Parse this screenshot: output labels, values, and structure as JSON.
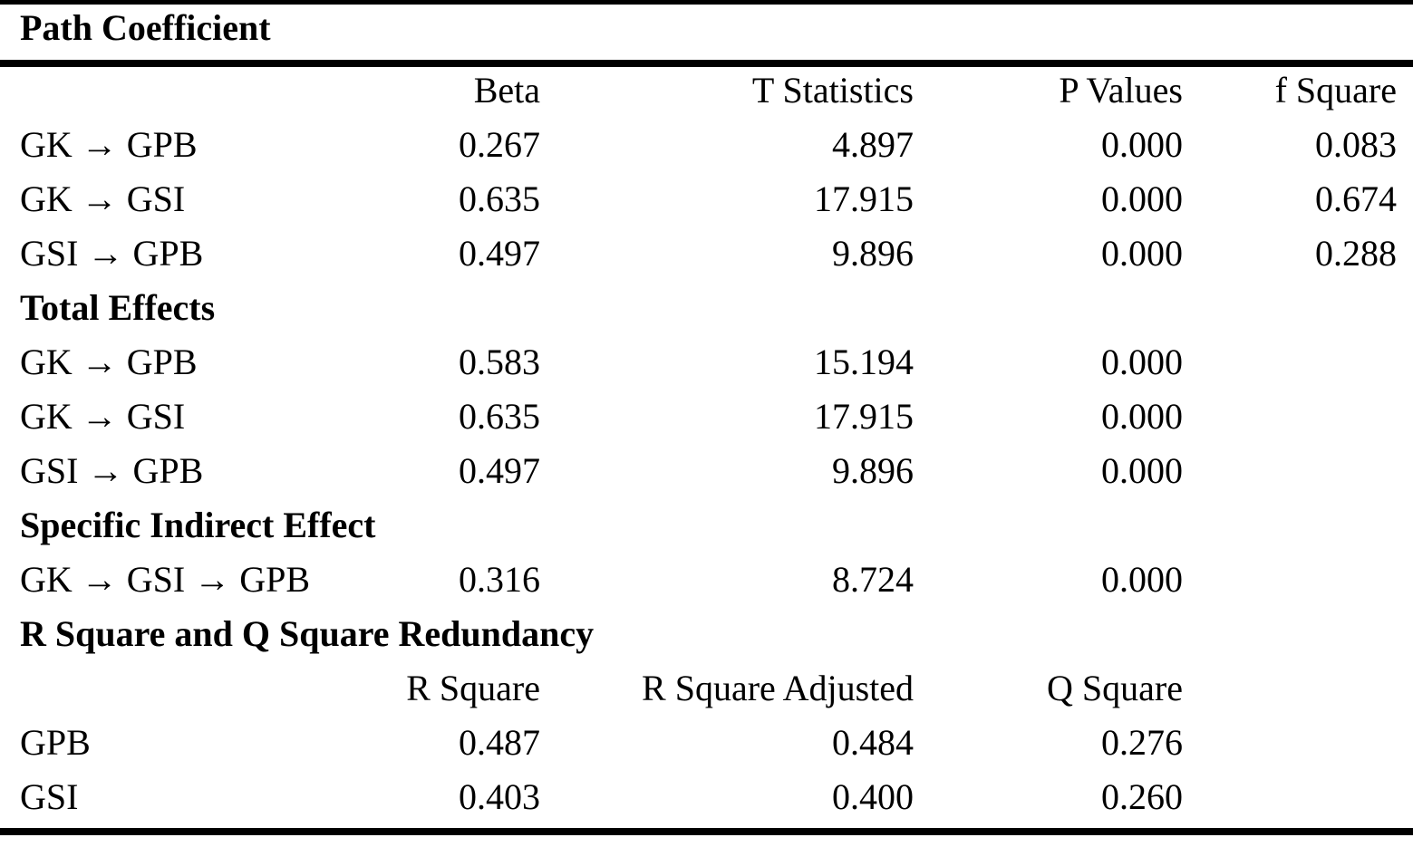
{
  "sections": {
    "path_coefficient": {
      "title": "Path Coefficient",
      "headers": [
        "",
        "Beta",
        "T Statistics",
        "P Values",
        "f Square"
      ],
      "rows": [
        [
          "GK → GPB",
          "0.267",
          "4.897",
          "0.000",
          "0.083"
        ],
        [
          "GK → GSI",
          "0.635",
          "17.915",
          "0.000",
          "0.674"
        ],
        [
          "GSI → GPB",
          "0.497",
          "9.896",
          "0.000",
          "0.288"
        ]
      ]
    },
    "total_effects": {
      "title": "Total Effects",
      "rows": [
        [
          "GK → GPB",
          "0.583",
          "15.194",
          "0.000"
        ],
        [
          "GK → GSI",
          "0.635",
          "17.915",
          "0.000"
        ],
        [
          "GSI → GPB",
          "0.497",
          "9.896",
          "0.000"
        ]
      ]
    },
    "specific_indirect_effect": {
      "title": "Specific Indirect Effect",
      "rows": [
        [
          "GK → GSI → GPB",
          "0.316",
          "8.724",
          "0.000"
        ]
      ]
    },
    "r_square": {
      "title": "R Square and Q Square Redundancy",
      "headers": [
        "",
        "R Square",
        "R Square Adjusted",
        "Q Square"
      ],
      "rows": [
        [
          "GPB",
          "0.487",
          "0.484",
          "0.276"
        ],
        [
          "GSI",
          "0.403",
          "0.400",
          "0.260"
        ]
      ]
    }
  }
}
